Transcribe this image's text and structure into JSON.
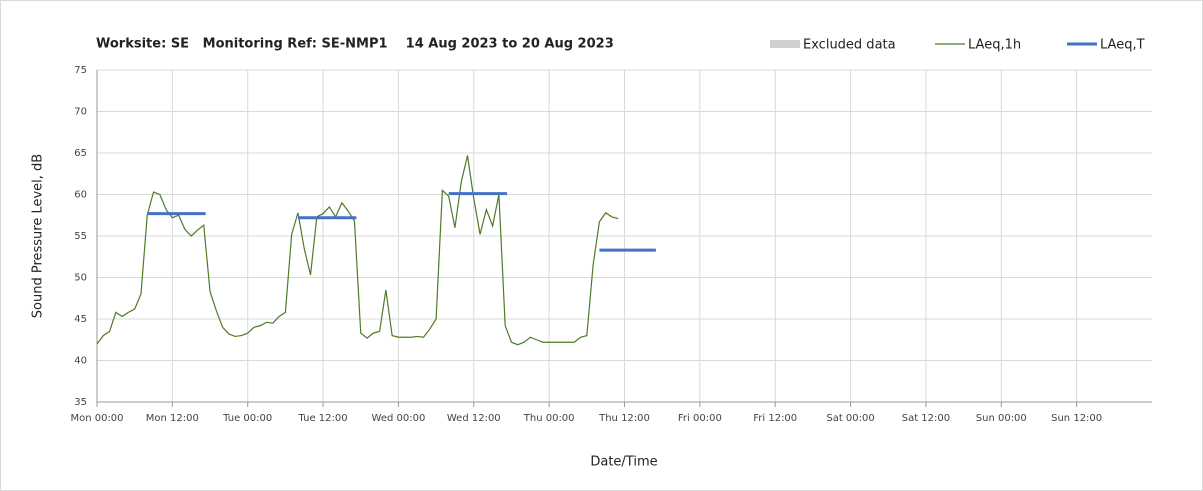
{
  "chart_data": {
    "type": "line",
    "title": "Worksite: SE   Monitoring Ref: SE-NMP1    14 Aug 2023 to 20 Aug 2023",
    "x_label": "Date/Time",
    "y_label": "Sound Pressure Level, dB",
    "xlim": [
      0,
      168
    ],
    "xticks": [
      {
        "value": 0,
        "label": "Mon 00:00"
      },
      {
        "value": 12,
        "label": "Mon 12:00"
      },
      {
        "value": 24,
        "label": "Tue 00:00"
      },
      {
        "value": 36,
        "label": "Tue 12:00"
      },
      {
        "value": 48,
        "label": "Wed 00:00"
      },
      {
        "value": 60,
        "label": "Wed 12:00"
      },
      {
        "value": 72,
        "label": "Thu 00:00"
      },
      {
        "value": 84,
        "label": "Thu 12:00"
      },
      {
        "value": 96,
        "label": "Fri 00:00"
      },
      {
        "value": 108,
        "label": "Fri 12:00"
      },
      {
        "value": 120,
        "label": "Sat 00:00"
      },
      {
        "value": 132,
        "label": "Sat 12:00"
      },
      {
        "value": 144,
        "label": "Sun 00:00"
      },
      {
        "value": 156,
        "label": "Sun 12:00"
      }
    ],
    "ylim": [
      35,
      75
    ],
    "yticks": [
      35,
      40,
      45,
      50,
      55,
      60,
      65,
      70,
      75
    ],
    "grid": true,
    "series": [
      {
        "name": "Excluded data",
        "color": "#d0d0d0",
        "kind": "area",
        "x": [],
        "values": []
      },
      {
        "name": "LAeq,1h",
        "color": "#4f7a28",
        "kind": "thin",
        "x": [
          0,
          1,
          2,
          3,
          4,
          5,
          6,
          7,
          8,
          9,
          10,
          11,
          12,
          13,
          14,
          15,
          16,
          17,
          18,
          19,
          20,
          21,
          22,
          23,
          24,
          25,
          26,
          27,
          28,
          29,
          30,
          31,
          32,
          33,
          34,
          35,
          36,
          37,
          38,
          39,
          40,
          41,
          42,
          43,
          44,
          45,
          46,
          47,
          48,
          49,
          50,
          51,
          52,
          53,
          54,
          55,
          56,
          57,
          58,
          59,
          60,
          61,
          62,
          63,
          64,
          65,
          66,
          67,
          68,
          69,
          70,
          71,
          72,
          73,
          74,
          75,
          76,
          77,
          78,
          79,
          80,
          81,
          82,
          83
        ],
        "values": [
          42,
          43,
          43.5,
          45.8,
          45.3,
          45.8,
          46.2,
          48,
          57.5,
          60.3,
          60,
          58.2,
          57.2,
          57.5,
          55.8,
          55,
          55.7,
          56.3,
          48.3,
          46,
          44,
          43.2,
          42.9,
          43,
          43.3,
          44,
          44.2,
          44.6,
          44.5,
          45.3,
          45.8,
          55.2,
          57.8,
          53.5,
          50.3,
          57.3,
          57.7,
          58.5,
          57.3,
          59,
          58,
          56.8,
          43.3,
          42.7,
          43.3,
          43.5,
          48.5,
          43,
          42.8,
          42.8,
          42.8,
          42.9,
          42.8,
          43.8,
          45,
          60.5,
          59.8,
          56,
          61.5,
          64.7,
          59.5,
          55.2,
          58.2,
          56.2,
          60,
          44.2,
          42.2,
          41.9,
          42.2,
          42.8,
          42.5,
          42.2,
          42.2,
          42.2,
          42.2,
          42.2,
          42.2,
          42.8,
          43,
          51.5,
          56.7,
          57.8,
          57.3,
          57.1
        ]
      },
      {
        "name": "LAeq,T",
        "color": "#4472c4",
        "kind": "thick",
        "x": [
          8,
          17.3,
          17.3,
          32,
          41.3,
          41.3,
          56,
          65.3,
          65.3,
          80,
          89
        ],
        "values": [
          57.7,
          57.7,
          null,
          57.2,
          57.2,
          null,
          60.1,
          60.1,
          null,
          53.3,
          53.3
        ]
      }
    ]
  }
}
